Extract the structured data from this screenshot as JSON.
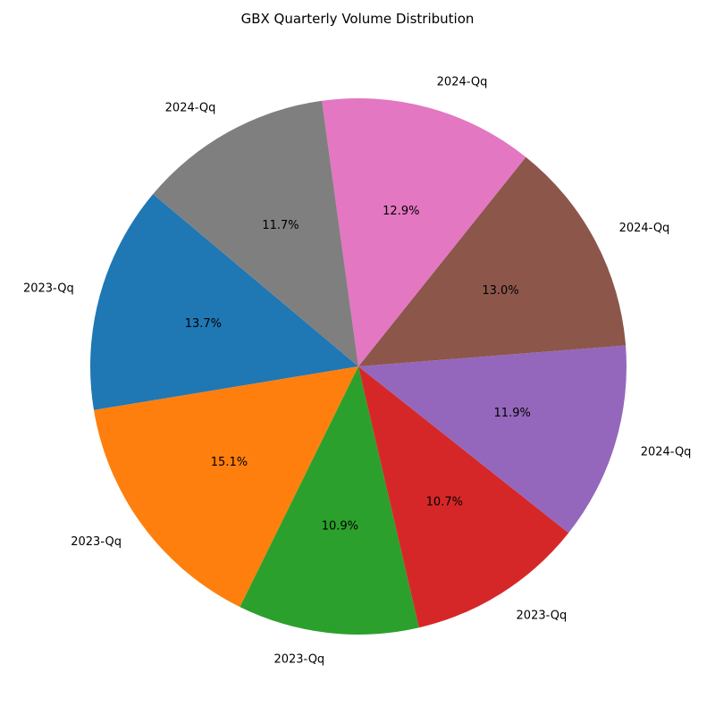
{
  "chart_data": {
    "type": "pie",
    "title": "GBX Quarterly Volume Distribution",
    "categories": [
      "2023-Qq",
      "2023-Qq",
      "2023-Qq",
      "2023-Qq",
      "2024-Qq",
      "2024-Qq",
      "2024-Qq",
      "2024-Qq"
    ],
    "values": [
      13.7,
      15.1,
      10.9,
      10.7,
      11.9,
      13.0,
      12.9,
      11.7
    ],
    "value_labels": [
      "13.7%",
      "15.1%",
      "10.9%",
      "10.7%",
      "11.9%",
      "13.0%",
      "12.9%",
      "11.7%"
    ],
    "colors": [
      "#1f77b4",
      "#ff7f0e",
      "#2ca02c",
      "#d62728",
      "#9467bd",
      "#8c564b",
      "#e377c2",
      "#7f7f7f"
    ],
    "start_angle_deg": 140,
    "direction": "counterclockwise",
    "legend": "none"
  }
}
